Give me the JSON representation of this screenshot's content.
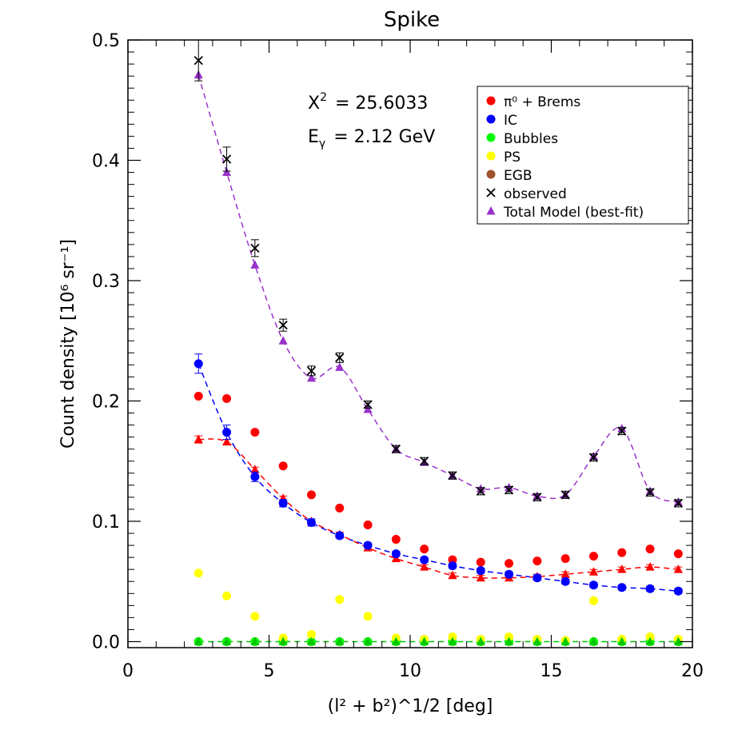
{
  "chart_data": {
    "type": "scatter",
    "title": "Spike",
    "xlabel": "(l² + b²)^1/2 [deg]",
    "ylabel": "Count density [10⁶ sr⁻¹]",
    "xlim": [
      0,
      20
    ],
    "ylim": [
      -0.005,
      0.5
    ],
    "x_ticks": [
      "0",
      "5",
      "10",
      "15",
      "20"
    ],
    "y_ticks": [
      "0.0",
      "0.1",
      "0.2",
      "0.3",
      "0.4",
      "0.5"
    ],
    "annotations": {
      "chi2_label": "X",
      "chi2_value": "= 25.6033",
      "energy_label": "E",
      "energy_value": "= 2.12 GeV"
    },
    "legend_position": "top-right",
    "x": [
      2.5,
      3.5,
      4.5,
      5.5,
      6.5,
      7.5,
      8.5,
      9.5,
      10.5,
      11.5,
      12.5,
      13.5,
      14.5,
      15.5,
      16.5,
      17.5,
      18.5,
      19.5
    ],
    "series": [
      {
        "name": "π⁰ + Brems",
        "color": "#ff0000",
        "marker": "circle",
        "values": [
          0.204,
          0.202,
          0.174,
          0.146,
          0.122,
          0.111,
          0.097,
          0.085,
          0.077,
          0.068,
          0.066,
          0.065,
          0.067,
          0.069,
          0.071,
          0.074,
          0.077,
          0.073
        ]
      },
      {
        "name": "IC",
        "color": "#0000ff",
        "marker": "circle",
        "values": [
          0.231,
          0.174,
          0.137,
          0.115,
          0.099,
          0.088,
          0.08,
          0.073,
          0.068,
          0.063,
          0.059,
          0.056,
          0.053,
          0.05,
          0.047,
          0.045,
          0.044,
          0.042
        ],
        "errors": [
          0.008,
          0.006,
          0.004,
          0.003,
          0.003,
          0.002,
          0.002,
          0.002,
          0.002,
          0.002,
          0.002,
          0.002,
          0.002,
          0.002,
          0.002,
          0.002,
          0.002,
          0.002
        ]
      },
      {
        "name": "Bubbles",
        "color": "#00ff00",
        "marker": "circle",
        "values": [
          0.0,
          0.0,
          0.0,
          0.0,
          0.0,
          0.0,
          0.0,
          0.0,
          0.0,
          0.0,
          0.0,
          0.0,
          0.0,
          0.0,
          0.0,
          0.0,
          0.0,
          0.0
        ]
      },
      {
        "name": "PS",
        "color": "#ffff00",
        "marker": "circle",
        "values": [
          0.057,
          0.038,
          0.021,
          0.003,
          0.006,
          0.035,
          0.021,
          0.003,
          0.002,
          0.004,
          0.002,
          0.004,
          0.002,
          0.001,
          0.034,
          0.002,
          0.004,
          0.002
        ]
      },
      {
        "name": "EGB",
        "color": "#a0522d",
        "marker": "circle",
        "values": [
          0.0,
          0.0,
          0.0,
          0.0,
          0.0,
          0.0,
          0.0,
          0.0,
          0.0,
          0.0,
          0.0,
          0.0,
          0.0,
          0.0,
          0.0,
          0.0,
          0.0,
          0.0
        ]
      },
      {
        "name": "observed",
        "color": "#000000",
        "marker": "x",
        "values": [
          0.483,
          0.401,
          0.327,
          0.263,
          0.225,
          0.236,
          0.197,
          0.16,
          0.15,
          0.138,
          0.125,
          0.126,
          0.12,
          0.122,
          0.153,
          0.175,
          0.124,
          0.115
        ],
        "errors": [
          0.017,
          0.01,
          0.007,
          0.005,
          0.004,
          0.004,
          0.003,
          0.003,
          0.003,
          0.003,
          0.003,
          0.003,
          0.003,
          0.003,
          0.003,
          0.003,
          0.003,
          0.003
        ]
      },
      {
        "name": "Total Model (best-fit)",
        "color": "#9932cc",
        "marker": "triangle",
        "values": [
          0.471,
          0.39,
          0.313,
          0.25,
          0.219,
          0.228,
          0.193,
          0.16,
          0.149,
          0.138,
          0.127,
          0.128,
          0.121,
          0.122,
          0.154,
          0.177,
          0.125,
          0.116
        ]
      },
      {
        "name": "",
        "color": "#ff0000",
        "marker": "triangle",
        "values": [
          0.168,
          0.166,
          0.143,
          0.119,
          0.1,
          0.089,
          0.078,
          0.069,
          0.062,
          0.055,
          0.053,
          0.053,
          0.054,
          0.056,
          0.058,
          0.06,
          0.062,
          0.06
        ],
        "errors": [
          0.003,
          0.002,
          0.002,
          0.002,
          0.002,
          0.002,
          0.002,
          0.002,
          0.002,
          0.002,
          0.002,
          0.002,
          0.002,
          0.002,
          0.002,
          0.002,
          0.002,
          0.002
        ]
      },
      {
        "name": "",
        "color": "#00c800",
        "marker": "triangle",
        "values": [
          0.0,
          0.0,
          0.0,
          0.0,
          0.0,
          0.0,
          0.0,
          0.0,
          0.0,
          0.0,
          0.0,
          0.0,
          0.0,
          0.0,
          0.0,
          0.0,
          0.0,
          0.0
        ]
      }
    ],
    "dashed_fits": [
      {
        "color": "#9932cc",
        "series_index": 6
      },
      {
        "color": "#0000ff",
        "series_index": 1
      },
      {
        "color": "#ff0000",
        "series_index": 7
      },
      {
        "color": "#00c800",
        "series_index": 8
      }
    ]
  }
}
